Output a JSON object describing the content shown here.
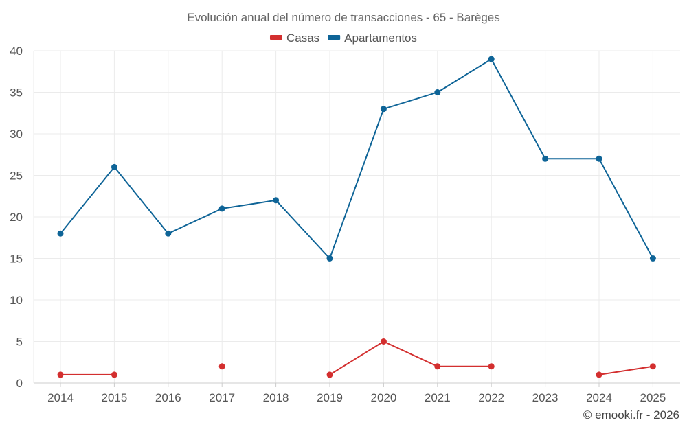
{
  "chart_data": {
    "type": "line",
    "title": "Evolución anual del número de transacciones - 65 - Barèges",
    "categories": [
      "2014",
      "2015",
      "2016",
      "2017",
      "2018",
      "2019",
      "2020",
      "2021",
      "2022",
      "2023",
      "2024",
      "2025"
    ],
    "y_ticks": [
      "0",
      "5",
      "10",
      "15",
      "20",
      "25",
      "30",
      "35",
      "40"
    ],
    "ylim": [
      0,
      40
    ],
    "grid": true,
    "legend_position": "top-center",
    "series": [
      {
        "name": "Casas",
        "color": "#d32f2f",
        "values": [
          1,
          1,
          null,
          2,
          null,
          1,
          5,
          2,
          2,
          null,
          1,
          2
        ]
      },
      {
        "name": "Apartamentos",
        "color": "#0e6497",
        "values": [
          18,
          26,
          18,
          21,
          22,
          15,
          33,
          35,
          39,
          27,
          27,
          15
        ]
      }
    ]
  },
  "footer": {
    "credit": "© emooki.fr - 2026"
  }
}
